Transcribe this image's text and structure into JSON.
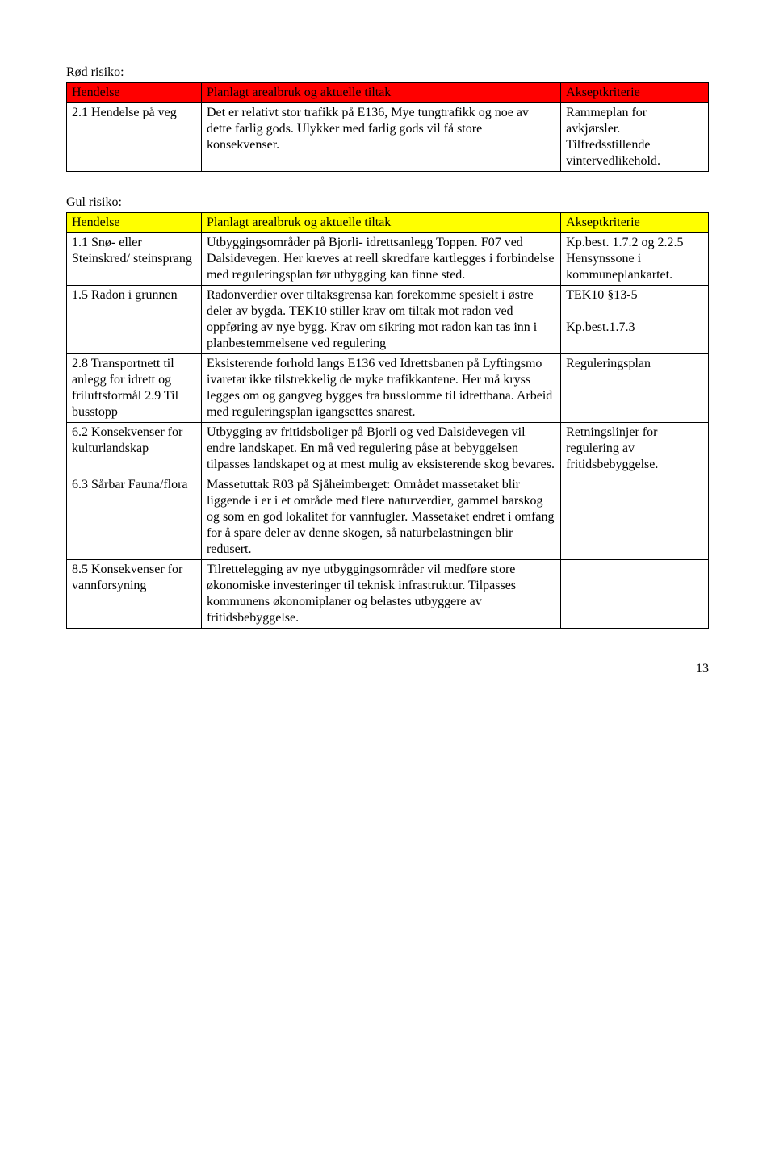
{
  "red": {
    "title": "Rød risiko:",
    "header_bg": "#ff0000",
    "headers": [
      "Hendelse",
      "Planlagt arealbruk og aktuelle tiltak",
      "Akseptkriterie"
    ],
    "rows": [
      {
        "c1": "2.1 Hendelse på veg",
        "c2": "Det er relativt stor trafikk på E136, Mye tungtrafikk og noe av dette farlig gods. Ulykker med farlig gods vil få store konsekvenser.",
        "c3": "Rammeplan for avkjørsler. Tilfredsstillende vintervedlikehold."
      }
    ]
  },
  "yellow": {
    "title": "Gul risiko:",
    "header_bg": "#ffff00",
    "headers": [
      "Hendelse",
      "Planlagt arealbruk og aktuelle tiltak",
      "Akseptkriterie"
    ],
    "rows": [
      {
        "c1": "1.1 Snø- eller Steinskred/ steinsprang",
        "c2": "Utbyggingsområder på Bjorli- idrettsanlegg Toppen. F07 ved Dalsidevegen. Her kreves at reell skredfare kartlegges i forbindelse med reguleringsplan før utbygging kan finne sted.",
        "c3": "Kp.best. 1.7.2 og 2.2.5 Hensynssone i kommuneplankartet."
      },
      {
        "c1": "1.5 Radon i grunnen",
        "c2": "Radonverdier over tiltaksgrensa kan forekomme spesielt i østre deler av bygda. TEK10 stiller krav om tiltak mot radon ved oppføring av nye bygg. Krav om sikring mot radon kan tas inn i planbestemmelsene ved regulering",
        "c3": "TEK10 §13-5\n\nKp.best.1.7.3"
      },
      {
        "c1": "2.8 Transportnett til anlegg for idrett og friluftsformål 2.9 Til busstopp",
        "c2": "Eksisterende forhold langs E136 ved Idrettsbanen på Lyftingsmo ivaretar ikke tilstrekkelig de myke trafikkantene. Her må kryss legges om og gangveg bygges fra busslomme til idrettbana. Arbeid med reguleringsplan igangsettes snarest.",
        "c3": "Reguleringsplan"
      },
      {
        "c1": "6.2 Konsekvenser for kulturlandskap",
        "c2": "Utbygging av fritidsboliger på Bjorli og ved Dalsidevegen vil endre landskapet. En må ved regulering påse at bebyggelsen tilpasses landskapet og at mest mulig av eksisterende skog bevares.",
        "c3": "Retningslinjer for regulering av fritidsbebyggelse."
      },
      {
        "c1": "6.3 Sårbar Fauna/flora",
        "c2": "Massetuttak R03 på Sjåheimberget: Området massetaket blir liggende i er i et område med flere naturverdier, gammel barskog og som en god lokalitet for vannfugler. Massetaket endret i omfang for å spare deler av denne skogen, så naturbelastningen blir redusert.",
        "c3": ""
      },
      {
        "c1": "8.5 Konsekvenser for vannforsyning",
        "c2": "Tilrettelegging av nye utbyggingsområder vil medføre store økonomiske investeringer til teknisk infrastruktur. Tilpasses kommunens økonomiplaner og belastes utbyggere av fritidsbebyggelse.",
        "c3": ""
      }
    ]
  },
  "page_number": "13"
}
